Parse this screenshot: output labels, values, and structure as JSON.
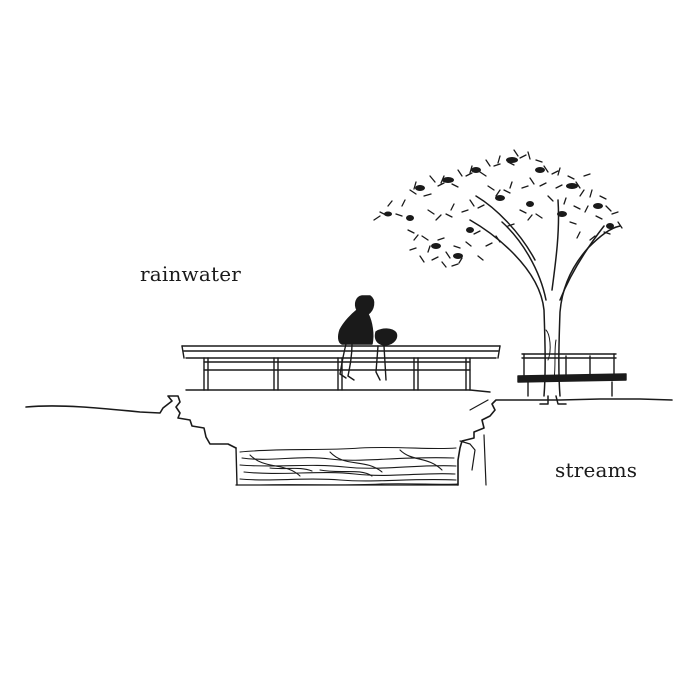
{
  "labels": {
    "rainwater": "rainwater",
    "streams": "streams"
  },
  "colors": {
    "ink": "#1a1a1a",
    "background": "#ffffff"
  }
}
